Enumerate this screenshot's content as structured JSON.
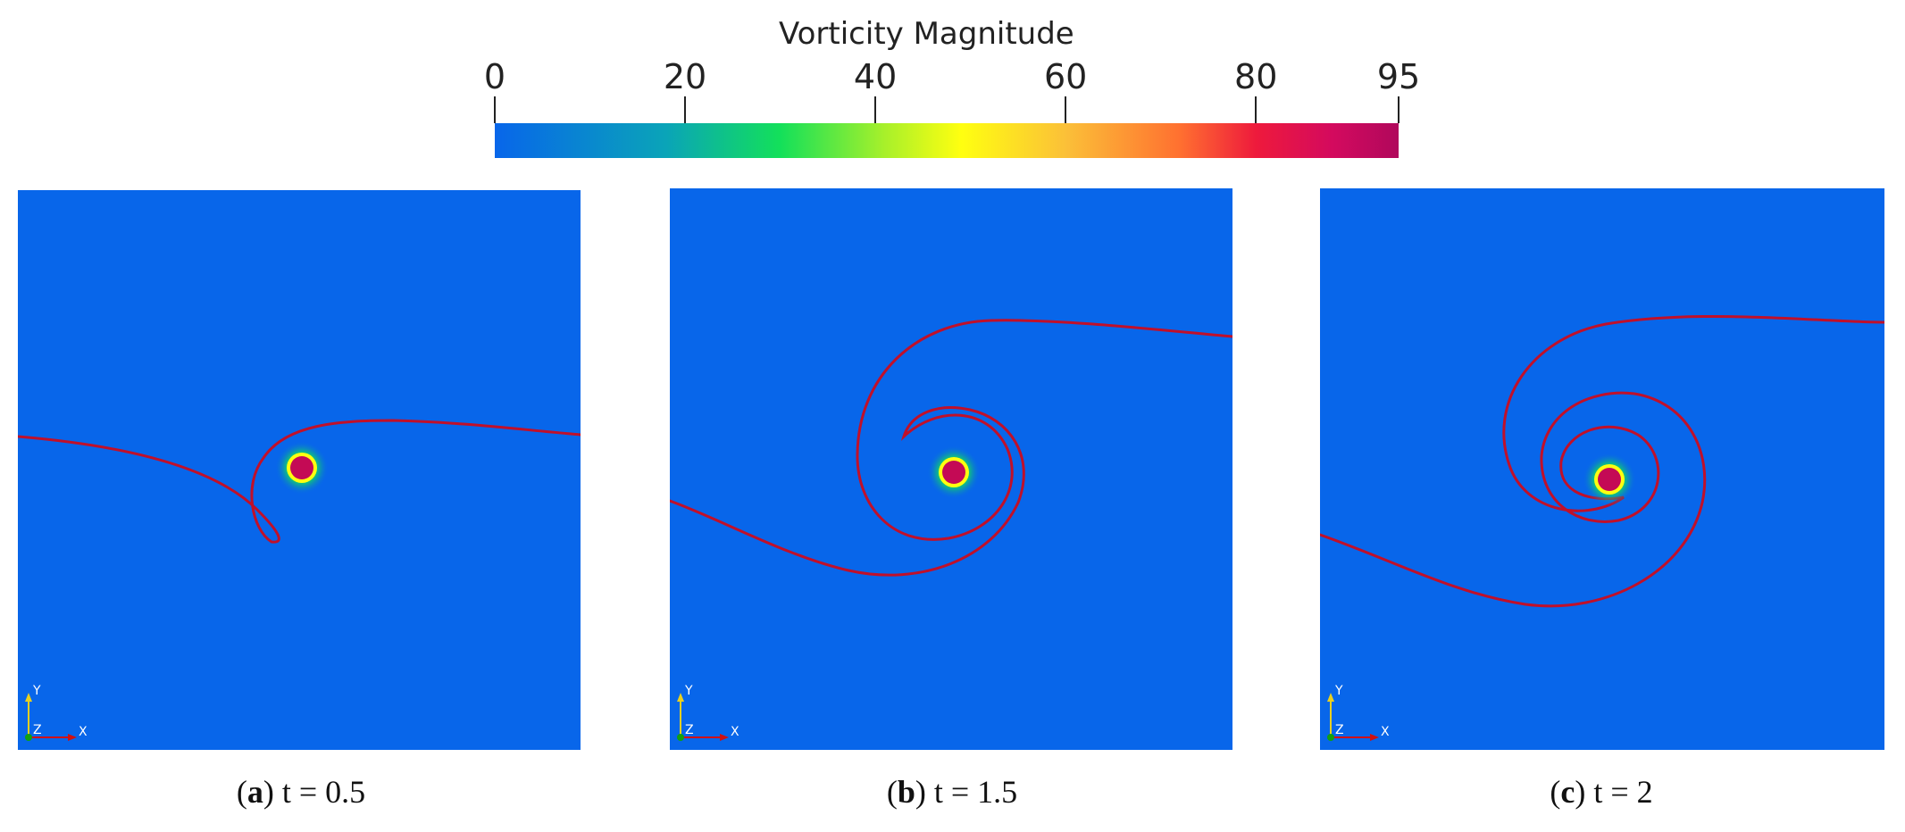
{
  "colorbar": {
    "title": "Vorticity Magnitude",
    "min": 0,
    "max": 95,
    "ticks": [
      "0",
      "20",
      "40",
      "60",
      "80",
      "95"
    ],
    "tick_values": [
      0,
      20,
      40,
      60,
      80,
      95
    ],
    "gradient": [
      {
        "value": 0,
        "color": "#0866ea"
      },
      {
        "value": 18,
        "color": "#0aa4b8"
      },
      {
        "value": 30,
        "color": "#13e05a"
      },
      {
        "value": 41,
        "color": "#a8f02a"
      },
      {
        "value": 49,
        "color": "#ffff10"
      },
      {
        "value": 60,
        "color": "#fbc038"
      },
      {
        "value": 72,
        "color": "#ff7030"
      },
      {
        "value": 80,
        "color": "#ee1a3c"
      },
      {
        "value": 88,
        "color": "#d40a5e"
      },
      {
        "value": 95,
        "color": "#b0085c"
      }
    ]
  },
  "colors": {
    "field": "#0866ea",
    "interface": "#c0102a",
    "vortex_core": "#c40a55",
    "vortex_ring": "#ffff10",
    "vortex_halo": "#13e05a",
    "axis_y": "#e8d020",
    "axis_x": "#d01010",
    "axis_z": "#10a010"
  },
  "panels": [
    {
      "letter": "a",
      "label_rest": " t = 0.5",
      "time": 0.5
    },
    {
      "letter": "b",
      "label_rest": " t = 1.5",
      "time": 1.5
    },
    {
      "letter": "c",
      "label_rest": " t = 2",
      "time": 2
    }
  ],
  "axes_glyph": {
    "y": "Y",
    "x": "X",
    "z": "Z"
  }
}
